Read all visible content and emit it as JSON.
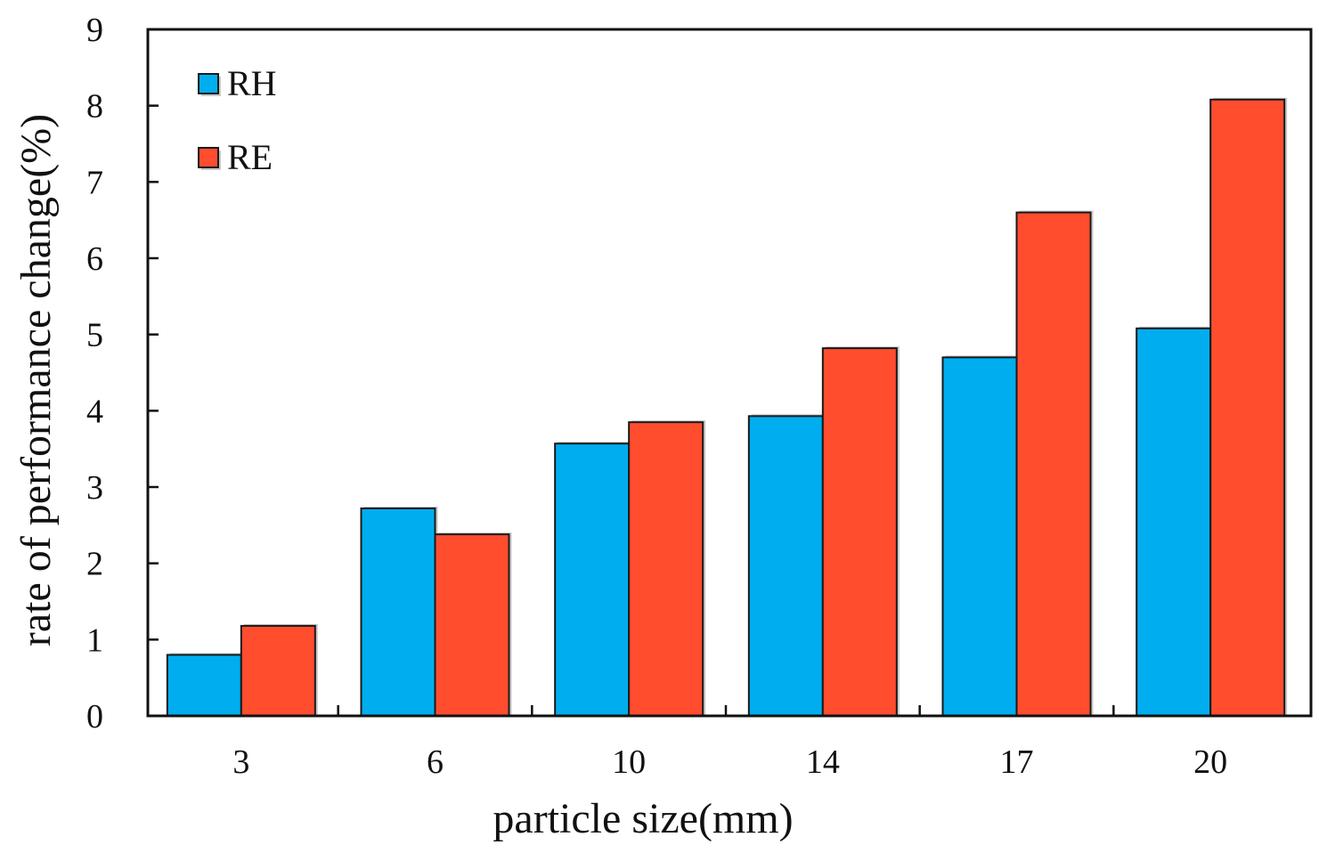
{
  "chart_data": {
    "type": "bar",
    "title": "",
    "xlabel": "particle size(mm)",
    "ylabel": "rate of performance change(%)",
    "categories": [
      "3",
      "6",
      "10",
      "14",
      "17",
      "20"
    ],
    "series": [
      {
        "name": "RH",
        "color": "#00aeef",
        "values": [
          0.8,
          2.72,
          3.57,
          3.93,
          4.7,
          5.08
        ]
      },
      {
        "name": "RE",
        "color": "#ff4d2e",
        "values": [
          1.18,
          2.38,
          3.85,
          4.82,
          6.6,
          8.08
        ]
      }
    ],
    "ylim": [
      0,
      9
    ],
    "yticks": [
      0,
      1,
      2,
      3,
      4,
      5,
      6,
      7,
      8,
      9
    ],
    "grid": false,
    "legend_position": "top-left"
  }
}
